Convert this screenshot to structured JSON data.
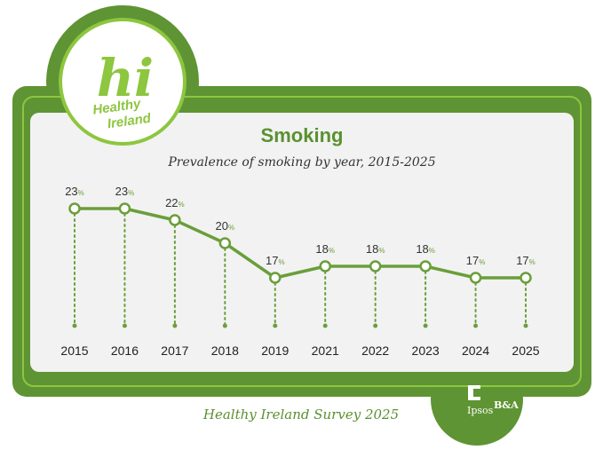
{
  "brand": {
    "logo_mark": "hi",
    "logo_line1": "Healthy",
    "logo_line2": "Ireland",
    "partner_left": "Ipsos",
    "partner_right": "B&A"
  },
  "footer": {
    "text": "Healthy Ireland Survey 2025"
  },
  "colors": {
    "frame_dark": "#5e9433",
    "frame_light": "#8dc63f",
    "panel": "#f2f2f2",
    "line": "#6a9e3a"
  },
  "chart_data": {
    "type": "line",
    "title": "Smoking",
    "subtitle": "Prevalence of smoking by year, 2015-2025",
    "xlabel": "",
    "ylabel": "",
    "unit": "%",
    "categories": [
      "2015",
      "2016",
      "2017",
      "2018",
      "2019",
      "2021",
      "2022",
      "2023",
      "2024",
      "2025"
    ],
    "values": [
      23,
      23,
      22,
      20,
      17,
      18,
      18,
      18,
      17,
      17
    ],
    "ylim": [
      17,
      23
    ],
    "grid": false,
    "legend": "none"
  }
}
